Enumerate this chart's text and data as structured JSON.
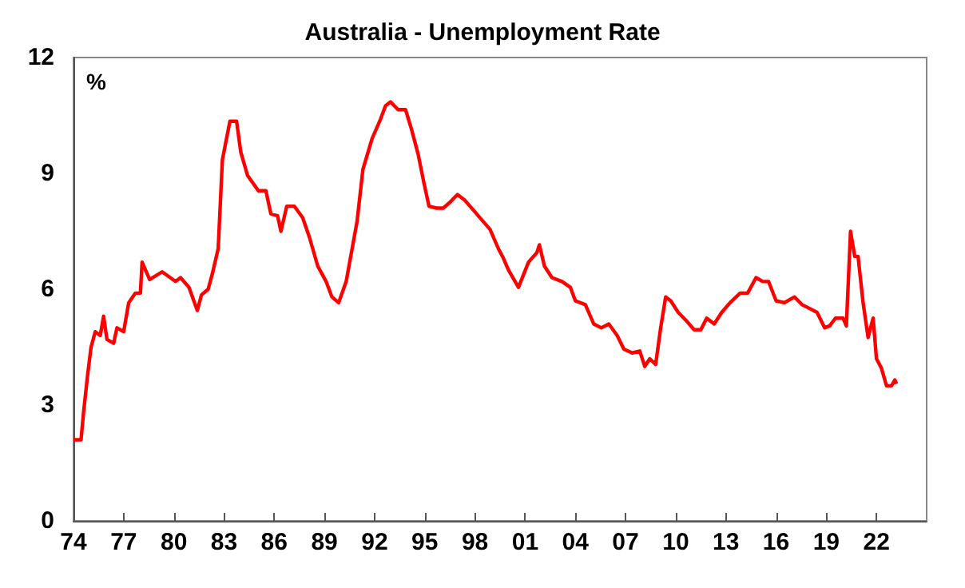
{
  "chart_data": {
    "type": "line",
    "title": "Australia - Unemployment Rate",
    "ylabel": "%",
    "xlim": [
      1974,
      2025
    ],
    "xticks": [
      {
        "value": 1974,
        "label": "74"
      },
      {
        "value": 1977,
        "label": "77"
      },
      {
        "value": 1980,
        "label": "80"
      },
      {
        "value": 1983,
        "label": "83"
      },
      {
        "value": 1986,
        "label": "86"
      },
      {
        "value": 1989,
        "label": "89"
      },
      {
        "value": 1992,
        "label": "92"
      },
      {
        "value": 1995,
        "label": "95"
      },
      {
        "value": 1998,
        "label": "98"
      },
      {
        "value": 2001,
        "label": "01"
      },
      {
        "value": 2004,
        "label": "04"
      },
      {
        "value": 2007,
        "label": "07"
      },
      {
        "value": 2010,
        "label": "10"
      },
      {
        "value": 2013,
        "label": "13"
      },
      {
        "value": 2016,
        "label": "16"
      },
      {
        "value": 2019,
        "label": "19"
      },
      {
        "value": 2022,
        "label": "22"
      }
    ],
    "ylim": [
      0,
      12
    ],
    "yticks": [
      0,
      3,
      6,
      9,
      12
    ],
    "grid": false,
    "marker": "none",
    "line_style": "solid",
    "series": [
      {
        "color": "#ff0000",
        "x": [
          1974.0,
          1974.45,
          1974.6,
          1974.85,
          1975.05,
          1975.3,
          1975.6,
          1975.8,
          1976.0,
          1976.4,
          1976.6,
          1977.0,
          1977.3,
          1977.7,
          1978.0,
          1978.1,
          1978.55,
          1979.3,
          1980.1,
          1980.4,
          1980.9,
          1981.4,
          1981.65,
          1982.05,
          1982.3,
          1982.65,
          1982.9,
          1983.35,
          1983.75,
          1984.0,
          1984.4,
          1985.05,
          1985.5,
          1985.8,
          1986.2,
          1986.4,
          1986.75,
          1987.2,
          1987.7,
          1988.1,
          1988.6,
          1989.1,
          1989.45,
          1989.85,
          1990.3,
          1990.95,
          1991.3,
          1991.85,
          1992.35,
          1992.65,
          1992.95,
          1993.4,
          1993.85,
          1994.2,
          1994.6,
          1994.95,
          1995.25,
          1995.7,
          1996.1,
          1996.5,
          1996.95,
          1997.4,
          1997.9,
          1998.3,
          1998.9,
          1999.4,
          1999.7,
          2000.0,
          2000.6,
          2001.2,
          2001.7,
          2001.85,
          2002.15,
          2002.6,
          2003.2,
          2003.7,
          2004.0,
          2004.6,
          2005.1,
          2005.55,
          2006.0,
          2006.5,
          2006.9,
          2007.4,
          2007.85,
          2008.15,
          2008.45,
          2008.8,
          2009.1,
          2009.4,
          2009.7,
          2010.15,
          2010.6,
          2011.1,
          2011.5,
          2011.85,
          2012.3,
          2012.75,
          2013.25,
          2013.85,
          2014.3,
          2014.8,
          2015.2,
          2015.55,
          2016.0,
          2016.5,
          2017.1,
          2017.55,
          2018.0,
          2018.45,
          2018.9,
          2019.2,
          2019.55,
          2020.0,
          2020.2,
          2020.45,
          2020.7,
          2020.9,
          2021.2,
          2021.5,
          2021.8,
          2022.0,
          2022.3,
          2022.6,
          2022.9,
          2023.1,
          2023.2
        ],
        "values": [
          2.1,
          2.1,
          2.8,
          3.8,
          4.5,
          4.9,
          4.8,
          5.3,
          4.7,
          4.6,
          5.0,
          4.9,
          5.65,
          5.9,
          5.9,
          6.7,
          6.25,
          6.45,
          6.2,
          6.3,
          6.05,
          5.45,
          5.85,
          6.0,
          6.4,
          7.05,
          9.35,
          10.35,
          10.35,
          9.55,
          8.95,
          8.55,
          8.55,
          7.95,
          7.9,
          7.5,
          8.15,
          8.15,
          7.85,
          7.35,
          6.6,
          6.2,
          5.8,
          5.65,
          6.2,
          7.75,
          9.1,
          9.9,
          10.4,
          10.75,
          10.85,
          10.65,
          10.65,
          10.15,
          9.5,
          8.75,
          8.15,
          8.1,
          8.1,
          8.25,
          8.45,
          8.3,
          8.05,
          7.85,
          7.55,
          7.05,
          6.8,
          6.5,
          6.05,
          6.7,
          6.95,
          7.15,
          6.6,
          6.3,
          6.2,
          6.05,
          5.7,
          5.6,
          5.1,
          5.0,
          5.1,
          4.8,
          4.45,
          4.35,
          4.4,
          4.0,
          4.2,
          4.05,
          5.0,
          5.8,
          5.7,
          5.4,
          5.2,
          4.95,
          4.95,
          5.25,
          5.1,
          5.4,
          5.65,
          5.9,
          5.9,
          6.3,
          6.2,
          6.2,
          5.7,
          5.65,
          5.8,
          5.6,
          5.5,
          5.4,
          5.0,
          5.05,
          5.25,
          5.25,
          5.05,
          7.5,
          6.85,
          6.85,
          5.65,
          4.75,
          5.25,
          4.2,
          3.95,
          3.5,
          3.5,
          3.65,
          3.55
        ]
      }
    ]
  }
}
